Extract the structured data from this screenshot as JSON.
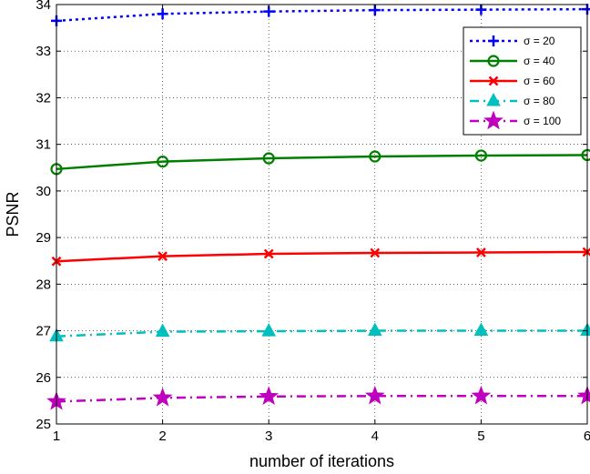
{
  "chart_data": {
    "type": "line",
    "xlabel": "number of iterations",
    "ylabel": "PSNR",
    "xlim": [
      1,
      6
    ],
    "ylim": [
      25,
      34
    ],
    "xticks": [
      1,
      2,
      3,
      4,
      5,
      6
    ],
    "yticks": [
      25,
      26,
      27,
      28,
      29,
      30,
      31,
      32,
      33,
      34
    ],
    "grid": true,
    "legend_position": "top-right",
    "x": [
      1,
      2,
      3,
      4,
      5,
      6
    ],
    "series": [
      {
        "name": "σ = 20",
        "values": [
          33.65,
          33.8,
          33.85,
          33.88,
          33.89,
          33.9
        ],
        "color": "#0000ff",
        "line_style": "dotted",
        "marker": "plus"
      },
      {
        "name": "σ = 40",
        "values": [
          30.47,
          30.63,
          30.7,
          30.74,
          30.76,
          30.77
        ],
        "color": "#007f00",
        "line_style": "solid",
        "marker": "circle"
      },
      {
        "name": "σ = 60",
        "values": [
          28.49,
          28.6,
          28.65,
          28.67,
          28.68,
          28.69
        ],
        "color": "#ff0000",
        "line_style": "solid",
        "marker": "x"
      },
      {
        "name": "σ = 80",
        "values": [
          26.88,
          26.98,
          26.99,
          27.0,
          27.0,
          27.0
        ],
        "color": "#00bfbf",
        "line_style": "dashdot",
        "marker": "triangle"
      },
      {
        "name": "σ = 100",
        "values": [
          25.48,
          25.56,
          25.59,
          25.6,
          25.6,
          25.6
        ],
        "color": "#bf00bf",
        "line_style": "dashdot",
        "marker": "star"
      }
    ]
  }
}
